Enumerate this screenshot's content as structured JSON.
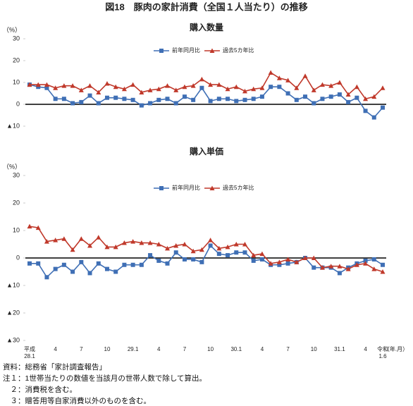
{
  "title": "図18　豚肉の家計消費（全国１人当たり）の推移",
  "chart_data": [
    {
      "type": "line",
      "title": "購入数量",
      "ylabel": "（%）",
      "categories": [
        null,
        null,
        null,
        null,
        null,
        null,
        null,
        null,
        null,
        null,
        null,
        null,
        null,
        null,
        null,
        null,
        null,
        null,
        null,
        null,
        null,
        null,
        null,
        null,
        null,
        null,
        null,
        null,
        null,
        null,
        null,
        null,
        null,
        null,
        null,
        null,
        null,
        null,
        null,
        null,
        null,
        null
      ],
      "ylim": [
        -10,
        30
      ],
      "yticks": [
        {
          "value": -10,
          "label": "▲10"
        },
        0,
        10,
        20,
        30
      ],
      "legend": "top",
      "series": [
        {
          "name": "前年同月比",
          "color": "#3f6fb5",
          "marker": "square",
          "values": [
            9,
            8,
            7.5,
            2.5,
            2.5,
            0.5,
            1,
            4,
            0.5,
            3,
            3,
            2.5,
            2,
            -0.5,
            0.5,
            2,
            2.5,
            0.5,
            3.5,
            2,
            7.5,
            1.5,
            2.5,
            2.5,
            1.5,
            2,
            2.5,
            3.5,
            8,
            8,
            5,
            2,
            3.5,
            0.5,
            2.5,
            3.5,
            4.5,
            1,
            3,
            -3,
            -6,
            -1.5
          ]
        },
        {
          "name": "過去5カ年比",
          "color": "#c0392b",
          "marker": "triangle",
          "values": [
            9,
            9,
            9,
            7.5,
            8.5,
            8.5,
            6.5,
            8.5,
            5.5,
            9.5,
            8,
            7,
            9,
            5.5,
            6.5,
            7,
            8.5,
            6.5,
            8,
            8.5,
            11.5,
            9,
            9,
            7,
            8,
            6,
            7,
            7.5,
            14.5,
            12,
            11,
            7.5,
            13,
            6.5,
            9,
            8.5,
            10,
            4.5,
            8,
            2.5,
            3.5,
            7.5
          ]
        }
      ]
    },
    {
      "type": "line",
      "title": "購入単価",
      "ylabel": "（%）",
      "xlabel": "（年.月）",
      "categories": [
        "平成\n28.1",
        null,
        null,
        "4",
        null,
        null,
        "7",
        null,
        null,
        "10",
        null,
        null,
        "29.1",
        null,
        null,
        "4",
        null,
        null,
        "7",
        null,
        null,
        "10",
        null,
        null,
        "30.1",
        null,
        null,
        "4",
        null,
        null,
        "7",
        null,
        null,
        "10",
        null,
        null,
        "31.1",
        null,
        null,
        "4",
        null,
        "令和\n1.6"
      ],
      "ylim": [
        -30,
        30
      ],
      "yticks": [
        {
          "value": -30,
          "label": "▲30"
        },
        {
          "value": -20,
          "label": "▲20"
        },
        {
          "value": -10,
          "label": "▲10"
        },
        0,
        10,
        20,
        30
      ],
      "legend": "top",
      "series": [
        {
          "name": "前年同月比",
          "color": "#3f6fb5",
          "marker": "square",
          "values": [
            -2,
            -2,
            -7,
            -4,
            -2.5,
            -5,
            -1.5,
            -5.5,
            -2,
            -4,
            -5,
            -2.5,
            -2.5,
            -2.5,
            1,
            -1,
            -2,
            2,
            -0.5,
            -0.5,
            -1.5,
            4.5,
            1.5,
            1,
            2,
            2,
            -1,
            -0.5,
            -2.5,
            -2.5,
            -2,
            -1.5,
            0,
            -3.5,
            -3.5,
            -3.5,
            -5.5,
            -3.5,
            -2,
            -1,
            -0.5,
            -2.5
          ]
        },
        {
          "name": "過去5カ年比",
          "color": "#c0392b",
          "marker": "triangle",
          "values": [
            11.5,
            11,
            6,
            6.5,
            7,
            3,
            7,
            4.5,
            7.5,
            4,
            4,
            5.5,
            6,
            5.5,
            5.5,
            5,
            3.5,
            4.5,
            5,
            2.5,
            3,
            6.5,
            3.5,
            4,
            5,
            5,
            1,
            1.5,
            -2,
            -1.5,
            -0.5,
            -1.5,
            0,
            0,
            -3.5,
            -3,
            -3,
            -4,
            -2.5,
            -2,
            -4,
            -5
          ]
        }
      ]
    }
  ],
  "notes": [
    "資料：総務省「家計調査報告」",
    "注１：1世帯当たりの数値を当該月の世帯人数で除して算出。",
    "　２：消費税を含む。",
    "　３：贈答用等自家消費以外のものを含む。"
  ]
}
